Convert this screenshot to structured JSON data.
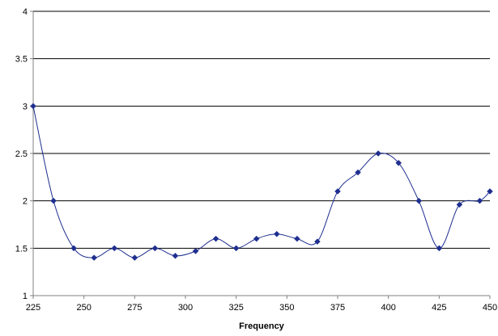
{
  "chart_data": {
    "type": "line",
    "title": "",
    "xlabel": "Frequency",
    "ylabel": "",
    "xlim": [
      225,
      450
    ],
    "ylim": [
      1,
      4
    ],
    "x_ticks": [
      225,
      250,
      275,
      300,
      325,
      350,
      375,
      400,
      425,
      450
    ],
    "y_ticks": [
      1,
      1.5,
      2,
      2.5,
      3,
      3.5,
      4
    ],
    "x_tick_labels": [
      "225",
      "250",
      "275",
      "300",
      "325",
      "350",
      "375",
      "400",
      "425",
      "450"
    ],
    "y_tick_labels": [
      "1",
      "1.5",
      "2",
      "2.5",
      "3",
      "3.5",
      "4"
    ],
    "grid": "horizontal",
    "legend": "none",
    "series": [
      {
        "color": "#1f2f8f",
        "marker": "diamond",
        "smooth": true,
        "x": [
          225,
          235,
          245,
          255,
          265,
          275,
          285,
          295,
          305,
          315,
          325,
          335,
          345,
          355,
          365,
          375,
          385,
          395,
          405,
          415,
          425,
          435,
          445,
          450
        ],
        "y": [
          3.0,
          2.0,
          1.5,
          1.4,
          1.5,
          1.4,
          1.5,
          1.42,
          1.47,
          1.6,
          1.5,
          1.6,
          1.65,
          1.6,
          1.57,
          2.1,
          2.3,
          2.5,
          2.4,
          2.0,
          1.5,
          1.96,
          2.0,
          2.1
        ]
      }
    ]
  }
}
